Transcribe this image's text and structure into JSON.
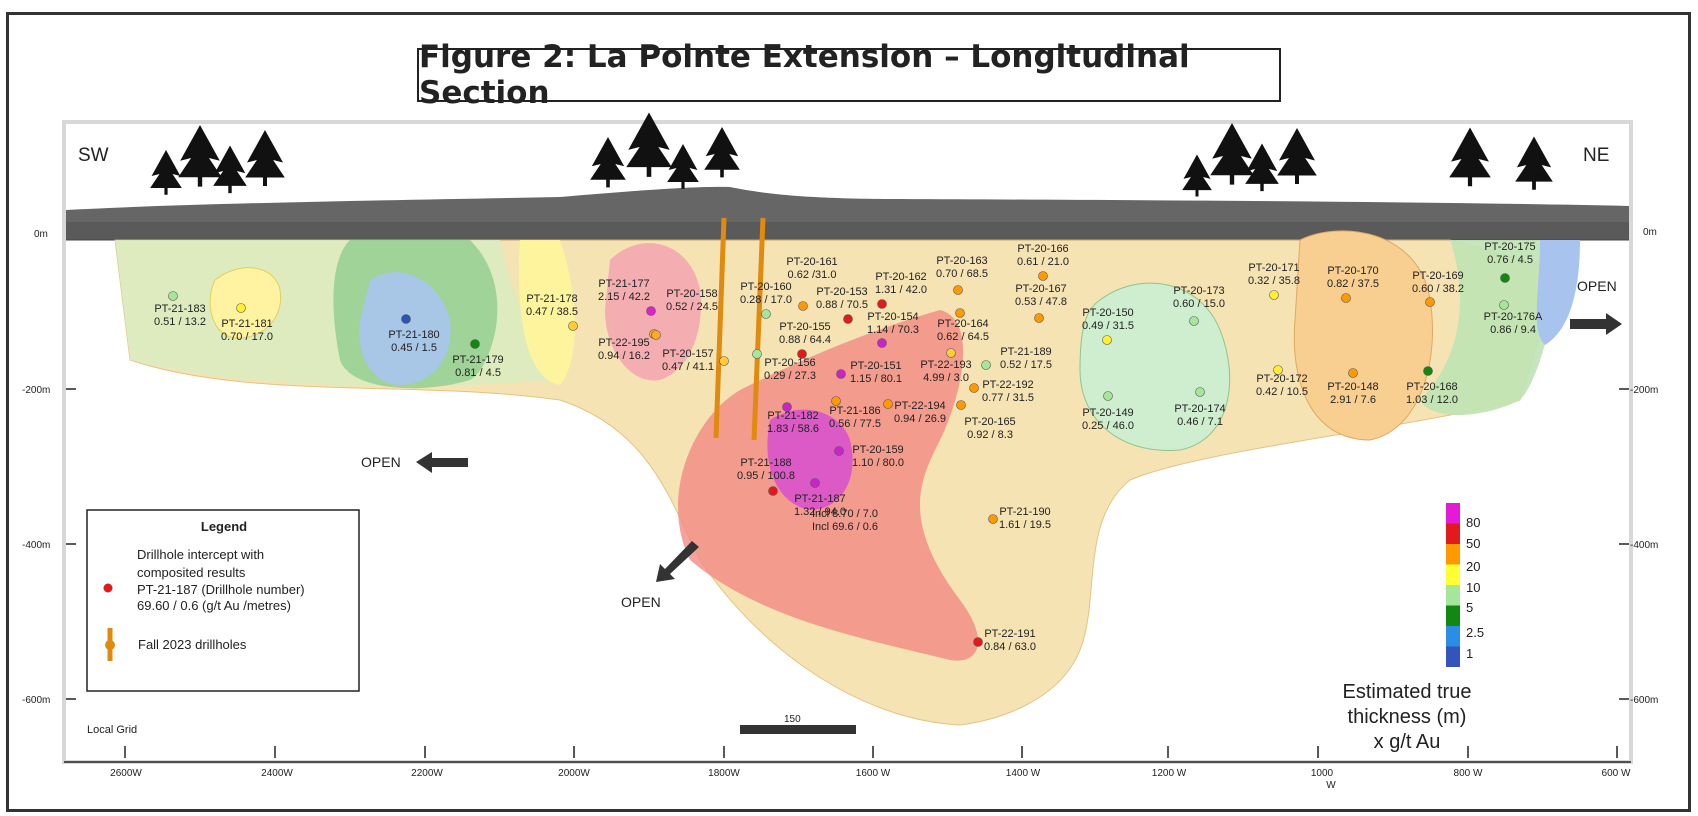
{
  "title": "Figure 2: La Pointe Extension – Longitudinal Section",
  "directions": {
    "sw": "SW",
    "ne": "NE"
  },
  "elevations": {
    "zero": "0m",
    "m200": "-200m",
    "m400": "-400m",
    "m600": "-600m"
  },
  "open_label": "OPEN",
  "local_grid": "Local Grid",
  "scale_bar": "150",
  "x_ticks": [
    "2600W",
    "2400W",
    "2200W",
    "2000W",
    "1800W",
    "1600 W",
    "1400 W",
    "1200 W",
    "1000",
    "800 W",
    "600 W"
  ],
  "x_tick_sub": "W",
  "legend": {
    "title": "Legend",
    "intercept_line1": "Drillhole intercept with",
    "intercept_line2": "composited results",
    "intercept_line3": "PT-21-187 (Drillhole number)",
    "intercept_line4": "69.60 / 0.6 (g/t Au /metres)",
    "fall_drillholes": "Fall 2023 drillholes"
  },
  "color_scale": {
    "labels": [
      "80",
      "50",
      "20",
      "10",
      "5",
      "2.5",
      "1"
    ],
    "colors": [
      "#e619d6",
      "#e31a1c",
      "#ff9900",
      "#ffff33",
      "#a6e69a",
      "#118811",
      "#2a8ee6",
      "#3355bb"
    ],
    "caption1": "Estimated true",
    "caption2": "thickness (m)",
    "caption3": "x g/t Au"
  },
  "holes": [
    {
      "id": "PT-21-183",
      "val": "0.51 / 13.2",
      "color": "#a6e69a"
    },
    {
      "id": "PT-21-181",
      "val": "0.70 / 17.0",
      "color": "#ffee33"
    },
    {
      "id": "PT-21-180",
      "val": "0.45 / 1.5",
      "color": "#2a55b0"
    },
    {
      "id": "PT-21-179",
      "val": "0.81 / 4.5",
      "color": "#118811"
    },
    {
      "id": "PT-21-178",
      "val": "0.47 / 38.5",
      "color": "#ffcc33"
    },
    {
      "id": "PT-21-177",
      "val": "2.15 / 42.2",
      "color": "#dd22cc"
    },
    {
      "id": "PT-20-158",
      "val": "0.52 / 24.5",
      "color": "#ffaa22"
    },
    {
      "id": "PT-22-195",
      "val": "0.94 / 16.2",
      "color": "#ffaa22"
    },
    {
      "id": "PT-20-157",
      "val": "0.47 / 41.1",
      "color": "#ffcc33"
    },
    {
      "id": "PT-20-160",
      "val": "0.28 / 17.0",
      "color": "#a6e69a"
    },
    {
      "id": "PT-20-161",
      "val": "0.62 /31.0",
      "color": "#ff9900"
    },
    {
      "id": "PT-20-153",
      "val": "0.88 / 70.5",
      "color": "#e31a1c"
    },
    {
      "id": "PT-20-162",
      "val": "1.31 / 42.0",
      "color": "#e31a1c"
    },
    {
      "id": "PT-20-155",
      "val": "0.88 / 64.4",
      "color": "#e31a1c"
    },
    {
      "id": "PT-20-154",
      "val": "1.14 / 70.3",
      "color": "#cc22cc"
    },
    {
      "id": "PT-20-156",
      "val": "0.29 / 27.3",
      "color": "#a6e69a"
    },
    {
      "id": "PT-20-151",
      "val": "1.15 / 80.1",
      "color": "#cc22cc"
    },
    {
      "id": "PT-21-182",
      "val": "1.83 / 58.6",
      "color": "#cc22cc"
    },
    {
      "id": "PT-21-186",
      "val": "0.56 / 77.5",
      "color": "#ff9900"
    },
    {
      "id": "PT-22-194",
      "val": "0.94 / 26.9",
      "color": "#ff9900"
    },
    {
      "id": "PT-20-163",
      "val": "0.70 / 68.5",
      "color": "#ff9900"
    },
    {
      "id": "PT-20-164",
      "val": "0.62 / 64.5",
      "color": "#ff9900"
    },
    {
      "id": "PT-22-193",
      "val": "4.99 / 3.0",
      "color": "#ffcc33"
    },
    {
      "id": "PT-21-189",
      "val": "0.52 / 17.5",
      "color": "#a6e69a"
    },
    {
      "id": "PT-22-192",
      "val": "0.77 / 31.5",
      "color": "#ff9900"
    },
    {
      "id": "PT-20-165",
      "val": "0.92 / 8.3",
      "color": "#ff9900"
    },
    {
      "id": "PT-20-166",
      "val": "0.61 / 21.0",
      "color": "#ff9900"
    },
    {
      "id": "PT-20-167",
      "val": "0.53 / 47.8",
      "color": "#ff9900"
    },
    {
      "id": "PT-20-159",
      "val": "1.10 / 80.0",
      "color": "#cc22cc"
    },
    {
      "id": "PT-21-188",
      "val": "0.95 / 100.8",
      "color": "#e31a1c"
    },
    {
      "id": "PT-21-187",
      "val": "1.32 / 94.0",
      "color": "#cc22cc"
    },
    {
      "id": "PT-21-187-incl1",
      "val": "Incl  8.70 / 7.0",
      "color": ""
    },
    {
      "id": "PT-21-187-incl2",
      "val": "Incl  69.6 / 0.6",
      "color": ""
    },
    {
      "id": "PT-21-190",
      "val": "1.61 / 19.5",
      "color": "#ff9900"
    },
    {
      "id": "PT-22-191",
      "val": "0.84 / 63.0",
      "color": "#e31a1c"
    },
    {
      "id": "PT-20-150",
      "val": "0.49 / 31.5",
      "color": "#ffee33"
    },
    {
      "id": "PT-20-149",
      "val": "0.25 / 46.0",
      "color": "#a6e69a"
    },
    {
      "id": "PT-20-173",
      "val": "0.60 / 15.0",
      "color": "#a6e69a"
    },
    {
      "id": "PT-20-174",
      "val": "0.46 / 7.1",
      "color": "#a6e69a"
    },
    {
      "id": "PT-20-171",
      "val": "0.32 / 35.8",
      "color": "#ffee33"
    },
    {
      "id": "PT-20-172",
      "val": "0.42 / 10.5",
      "color": "#ffee33"
    },
    {
      "id": "PT-20-170",
      "val": "0.82 / 37.5",
      "color": "#ff9900"
    },
    {
      "id": "PT-20-148",
      "val": "2.91 / 7.6",
      "color": "#ff9900"
    },
    {
      "id": "PT-20-169",
      "val": "0.60 / 38.2",
      "color": "#ff9900"
    },
    {
      "id": "PT-20-168",
      "val": "1.03 / 12.0",
      "color": "#118811"
    },
    {
      "id": "PT-20-175",
      "val": "0.76 / 4.5",
      "color": "#118811"
    },
    {
      "id": "PT-20-176A",
      "val": "0.86 / 9.4",
      "color": "#a6e69a"
    }
  ]
}
